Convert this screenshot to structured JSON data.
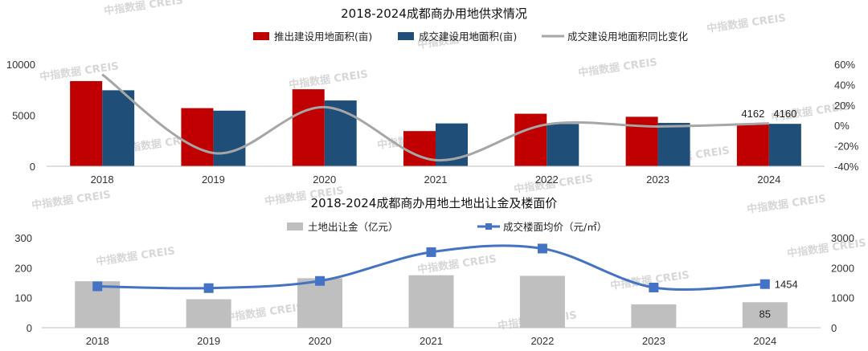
{
  "chart_data": [
    {
      "type": "bar",
      "title": "2018-2024成都商办用地供求情况",
      "categories": [
        "2018",
        "2019",
        "2020",
        "2021",
        "2022",
        "2023",
        "2024"
      ],
      "series": [
        {
          "name": "推出建设用地面积(亩)",
          "kind": "bar",
          "axis": "left",
          "color": "#c00000",
          "values": [
            8350,
            5700,
            7550,
            3450,
            5150,
            4850,
            4162
          ]
        },
        {
          "name": "成交建设用地面积(亩)",
          "kind": "bar",
          "axis": "left",
          "color": "#1f4e79",
          "values": [
            7450,
            5450,
            6450,
            4200,
            4150,
            4250,
            4160
          ]
        },
        {
          "name": "成交建设用地面积同比变化",
          "kind": "line",
          "axis": "right",
          "color": "#a6a6a6",
          "values": [
            50,
            -27,
            18,
            -34,
            1,
            -1,
            2
          ]
        }
      ],
      "left_axis": {
        "min": 0,
        "max": 10000,
        "ticks": [
          "0",
          "5000",
          "10000"
        ]
      },
      "right_axis": {
        "min": -40,
        "max": 60,
        "ticks": [
          "-40%",
          "-20%",
          "0%",
          "20%",
          "40%",
          "60%"
        ]
      },
      "data_labels": [
        {
          "series": 0,
          "index": 6,
          "text": "4162"
        },
        {
          "series": 1,
          "index": 6,
          "text": "4160"
        }
      ],
      "legend_position": "top"
    },
    {
      "type": "bar",
      "title": "2018-2024成都商办用地土地出让金及楼面价",
      "categories": [
        "2018",
        "2019",
        "2020",
        "2021",
        "2022",
        "2023",
        "2024"
      ],
      "series": [
        {
          "name": "土地出让金（亿元）",
          "kind": "bar",
          "axis": "left",
          "color": "#bfbfbf",
          "values": [
            155,
            95,
            165,
            175,
            173,
            78,
            85
          ]
        },
        {
          "name": "成交楼面均价（元/㎡）",
          "kind": "line",
          "axis": "right",
          "color": "#4472c4",
          "values": [
            1380,
            1320,
            1560,
            2520,
            2640,
            1340,
            1454
          ]
        }
      ],
      "left_axis": {
        "min": 0,
        "max": 300,
        "ticks": [
          "0",
          "100",
          "200",
          "300"
        ]
      },
      "right_axis": {
        "min": 0,
        "max": 3000,
        "ticks": [
          "0",
          "1000",
          "2000",
          "3000"
        ]
      },
      "data_labels": [
        {
          "series": 0,
          "index": 6,
          "text": "85"
        },
        {
          "series": 1,
          "index": 6,
          "text": "1454"
        }
      ],
      "legend_position": "top"
    }
  ],
  "watermark": {
    "text": "中指数据 CREIS"
  }
}
